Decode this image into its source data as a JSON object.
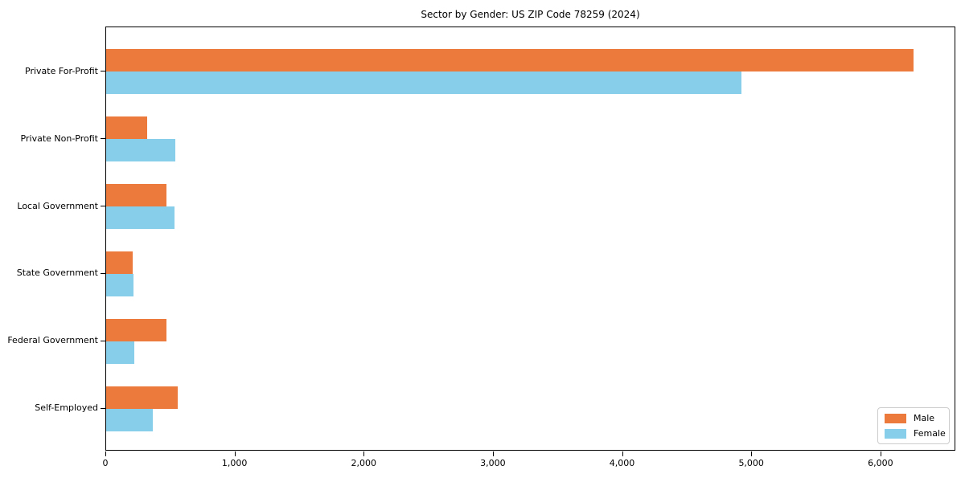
{
  "chart_data": {
    "type": "bar",
    "orientation": "horizontal",
    "title": "Sector by Gender: US ZIP Code 78259 (2024)",
    "categories": [
      "Private For-Profit",
      "Private Non-Profit",
      "Local Government",
      "State Government",
      "Federal Government",
      "Self-Employed"
    ],
    "series": [
      {
        "name": "Male",
        "color": "#EC7A3C",
        "values": [
          6250,
          315,
          467,
          204,
          467,
          554
        ]
      },
      {
        "name": "Female",
        "color": "#87CEEB",
        "values": [
          4920,
          535,
          527,
          212,
          220,
          361
        ]
      }
    ],
    "xlabel": "",
    "ylabel": "",
    "xlim": [
      0,
      6580
    ],
    "xticks": [
      0,
      1000,
      2000,
      3000,
      4000,
      5000,
      6000
    ],
    "xtick_labels": [
      "0",
      "1,000",
      "2,000",
      "3,000",
      "4,000",
      "5,000",
      "6,000"
    ],
    "grid": false,
    "legend_position": "lower right",
    "axis_color": "#000000",
    "background_color": "#ffffff"
  }
}
